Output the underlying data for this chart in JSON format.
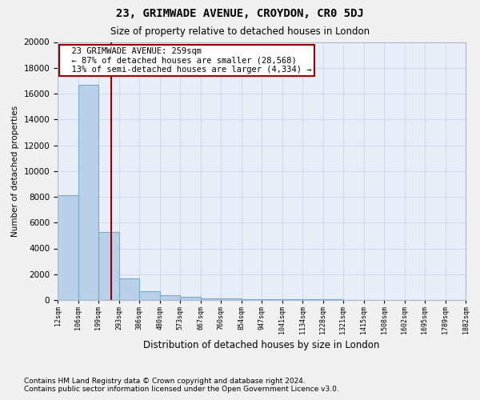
{
  "title": "23, GRIMWADE AVENUE, CROYDON, CR0 5DJ",
  "subtitle": "Size of property relative to detached houses in London",
  "xlabel": "Distribution of detached houses by size in London",
  "ylabel": "Number of detached properties",
  "bar_color": "#b8d0e8",
  "bar_edge_color": "#7aaad0",
  "bin_edges": [
    12,
    106,
    199,
    293,
    386,
    480,
    573,
    667,
    760,
    854,
    947,
    1041,
    1134,
    1228,
    1321,
    1415,
    1508,
    1602,
    1695,
    1789,
    1882
  ],
  "bar_heights": [
    8100,
    16700,
    5300,
    1700,
    700,
    350,
    250,
    150,
    100,
    75,
    60,
    50,
    45,
    35,
    25,
    20,
    15,
    10,
    8,
    5
  ],
  "property_size": 259,
  "annotation_title": "23 GRIMWADE AVENUE: 259sqm",
  "annotation_line1": "← 87% of detached houses are smaller (28,568)",
  "annotation_line2": "13% of semi-detached houses are larger (4,334) →",
  "vline_color": "#990000",
  "annotation_box_color": "#ffffff",
  "annotation_box_edge": "#990000",
  "footnote1": "Contains HM Land Registry data © Crown copyright and database right 2024.",
  "footnote2": "Contains public sector information licensed under the Open Government Licence v3.0.",
  "ylim": [
    0,
    20000
  ],
  "yticks": [
    0,
    2000,
    4000,
    6000,
    8000,
    10000,
    12000,
    14000,
    16000,
    18000,
    20000
  ],
  "grid_color": "#c8d4e8",
  "plot_bg_color": "#e8eef8",
  "fig_bg_color": "#f0f0f0"
}
